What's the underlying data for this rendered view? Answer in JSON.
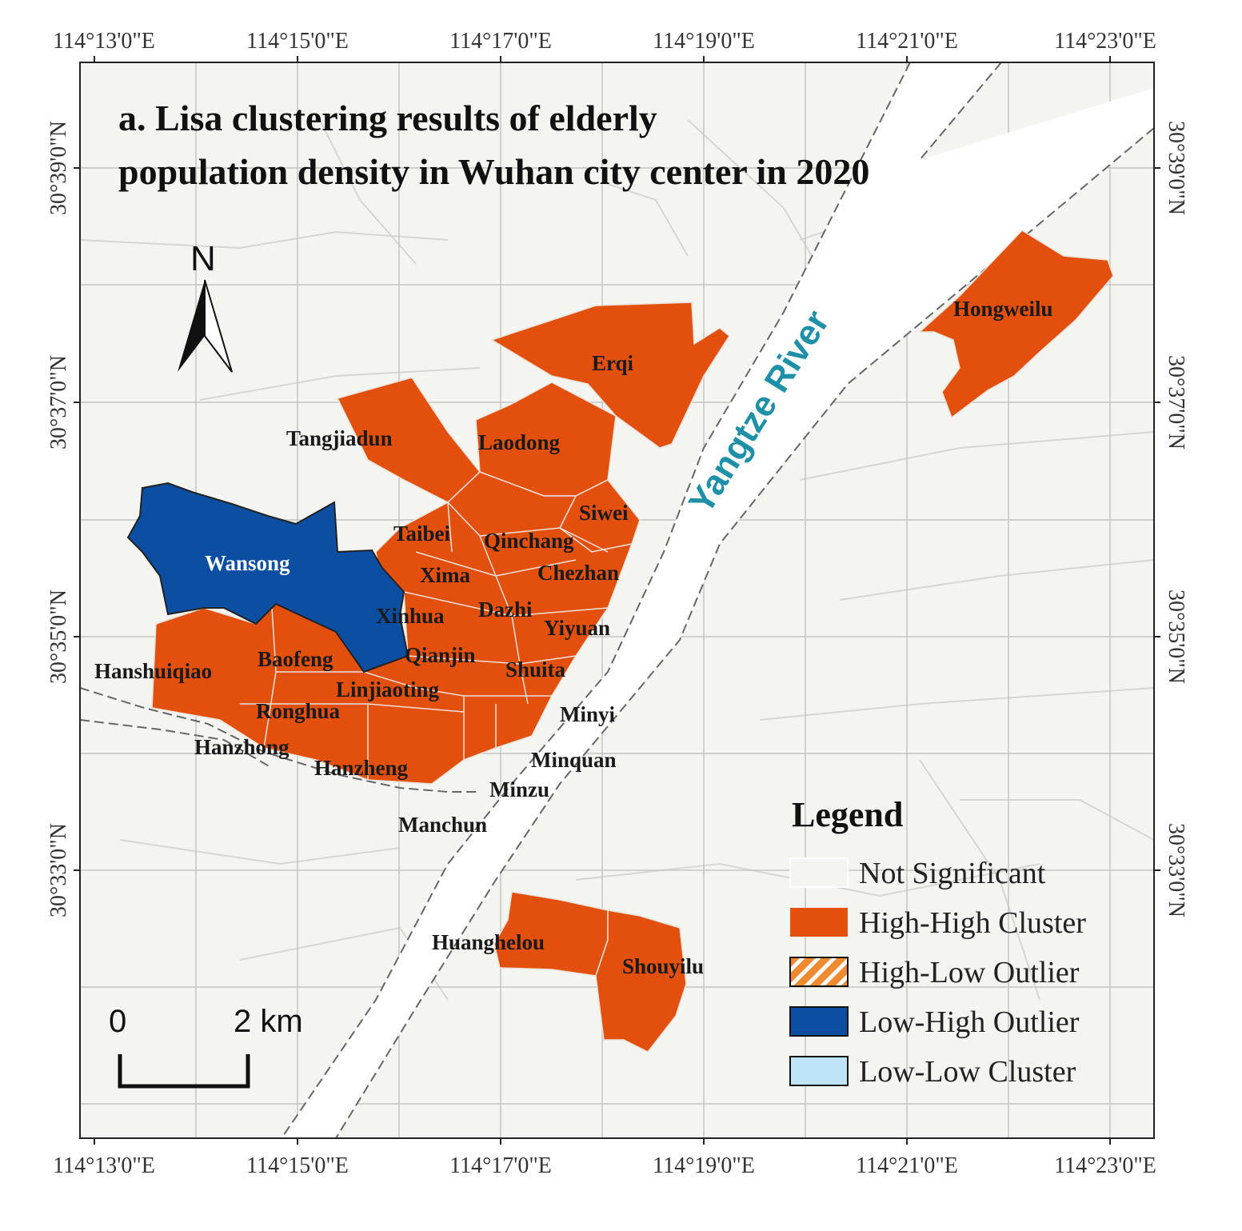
{
  "title_line1": "a. Lisa clustering results of elderly",
  "title_line2": "population density in Wuhan city center in 2020",
  "x_ticks": [
    "114°13'0\"E",
    "114°15'0\"E",
    "114°17'0\"E",
    "114°19'0\"E",
    "114°21'0\"E",
    "114°23'0\"E"
  ],
  "y_ticks": [
    "30°39'0\"N",
    "30°37'0\"N",
    "30°35'0\"N",
    "30°33'0\"N"
  ],
  "river_label": "Yangtze River",
  "north_label": "N",
  "scale": {
    "start": "0",
    "end": "2 km"
  },
  "legend": {
    "title": "Legend",
    "items": [
      {
        "label": "Not Significant",
        "color": "#f4f4f0"
      },
      {
        "label": "High-High Cluster",
        "color": "#e3500e"
      },
      {
        "label": "High-Low Outlier",
        "color": "#f08a30"
      },
      {
        "label": "Low-High Outlier",
        "color": "#0b4ea2"
      },
      {
        "label": "Low-Low Cluster",
        "color": "#bfe3f7"
      }
    ]
  },
  "places": {
    "hongweilu": "Hongweilu",
    "erqi": "Erqi",
    "tangjiadun": "Tangjiadun",
    "laodong": "Laodong",
    "siwei": "Siwei",
    "taibei": "Taibei",
    "qinchang": "Qinchang",
    "wansong": "Wansong",
    "xima": "Xima",
    "chezhan": "Chezhan",
    "xinhua": "Xinhua",
    "dazhi": "Dazhi",
    "yiyuan": "Yiyuan",
    "hanshuiqiao": "Hanshuiqiao",
    "baofeng": "Baofeng",
    "qianjin": "Qianjin",
    "shuita": "Shuita",
    "linjiaoting": "Linjiaoting",
    "ronghua": "Ronghua",
    "minyi": "Minyi",
    "hanzhong": "Hanzhong",
    "hanzheng": "Hanzheng",
    "minquan": "Minquan",
    "minzu": "Minzu",
    "manchun": "Manchun",
    "huanghelou": "Huanghelou",
    "shouyilu": "Shouyilu"
  },
  "colors": {
    "background": "#f4f4f0",
    "high_high": "#e3500e",
    "low_high": "#0b4ea2",
    "river": "#ffffff",
    "river_label": "#1e90a8"
  }
}
